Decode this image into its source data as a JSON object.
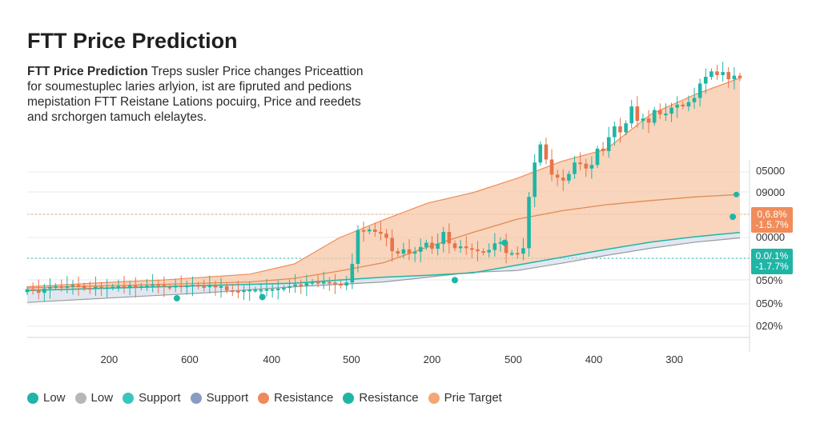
{
  "title": "FTT Price Prediction",
  "description": {
    "lead": "FTT Price Prediction",
    "lines": [
      " Treps susler Price changes Priceattion",
      "for soumestuplec laries arlyion, ist are fipruted and pedions",
      "mepistation FTT Reistane Lations pocuirg, Price and reedets",
      "and srchorgen tamuch elelaytes."
    ]
  },
  "chart_data": {
    "type": "line",
    "title": "FTT Price Prediction",
    "xlabel": "",
    "ylabel": "",
    "x_tick_labels": [
      "200",
      "600",
      "400",
      "500",
      "200",
      "500",
      "400",
      "300"
    ],
    "y_tick_labels": [
      "05000",
      "09000",
      "00000",
      "050%",
      "050%",
      "020%"
    ],
    "series": [
      {
        "name": "Price",
        "type": "candlestick",
        "values": [
          0.8,
          0.79,
          0.74,
          0.81,
          0.84,
          0.85,
          0.84,
          0.85,
          0.87,
          0.86,
          0.82,
          0.8,
          0.84,
          0.83,
          0.83,
          0.84,
          0.85,
          0.84,
          0.86,
          0.83,
          0.85,
          0.86,
          0.88,
          0.87,
          0.84,
          0.83,
          0.86,
          0.85,
          0.86,
          0.87,
          0.85,
          0.84,
          0.86,
          0.83,
          0.85,
          0.78,
          0.77,
          0.76,
          0.78,
          0.79,
          0.79,
          0.79,
          0.8,
          0.8,
          0.81,
          0.82,
          0.85,
          0.88,
          0.86,
          0.9,
          0.92,
          0.91,
          0.92,
          0.91,
          0.89,
          0.86,
          0.91,
          1.22,
          1.78,
          1.76,
          1.79,
          1.75,
          1.72,
          1.65,
          1.43,
          1.39,
          1.46,
          1.39,
          1.42,
          1.5,
          1.57,
          1.47,
          1.55,
          1.75,
          1.56,
          1.48,
          1.51,
          1.48,
          1.46,
          1.43,
          1.41,
          1.45,
          1.56,
          1.58,
          1.4,
          1.4,
          1.39,
          1.48,
          2.33,
          2.9,
          3.2,
          2.95,
          2.7,
          2.65,
          2.6,
          2.71,
          2.9,
          2.88,
          2.8,
          2.86,
          3.13,
          3.09,
          3.32,
          3.5,
          3.4,
          3.55,
          3.83,
          3.59,
          3.63,
          3.56,
          3.77,
          3.7,
          3.71,
          3.81,
          3.86,
          3.83,
          3.9,
          3.97,
          4.21,
          4.32,
          4.41,
          4.35,
          4.4,
          4.28,
          4.34,
          4.3
        ]
      },
      {
        "name": "Resistance",
        "values": [
          0.84,
          0.88,
          0.92,
          0.95,
          1.0,
          1.05,
          1.22,
          1.65,
          1.95,
          2.23,
          2.4,
          2.64,
          2.92,
          3.12,
          3.7,
          4.03,
          4.3
        ]
      },
      {
        "name": "Support",
        "values": [
          0.78,
          0.8,
          0.82,
          0.84,
          0.86,
          0.88,
          0.9,
          0.95,
          1.0,
          1.03,
          1.07,
          1.2,
          1.33,
          1.46,
          1.58,
          1.67,
          1.74
        ]
      },
      {
        "name": "Prie Target",
        "values": [
          0.82,
          0.84,
          0.86,
          0.88,
          0.9,
          0.92,
          0.98,
          1.1,
          1.24,
          1.5,
          1.74,
          1.96,
          2.1,
          2.2,
          2.27,
          2.33,
          2.37
        ]
      },
      {
        "name": "Low",
        "values": [
          0.58,
          0.62,
          0.66,
          0.7,
          0.74,
          0.79,
          0.84,
          0.88,
          0.92,
          1.0,
          1.08,
          1.11,
          1.23,
          1.36,
          1.48,
          1.58,
          1.65
        ]
      }
    ],
    "markers": [
      {
        "x": 0.21,
        "y": 0.65,
        "series": "Support"
      },
      {
        "x": 0.33,
        "y": 0.67,
        "series": "Support"
      },
      {
        "x": 0.6,
        "y": 0.95,
        "series": "Support"
      },
      {
        "x": 0.67,
        "y": 1.57,
        "series": "Support"
      },
      {
        "x": 0.99,
        "y": 2.0,
        "series": "Support"
      }
    ],
    "tags": [
      {
        "lines": [
          "0,6.8%",
          "-1.5.7%"
        ],
        "color": "#f08c5a",
        "text_color": "#ffffff"
      },
      {
        "lines": [
          "0.0/.1%",
          "-1.7.7%"
        ],
        "color": "#1fb5a5",
        "text_color": "#ffffff"
      }
    ],
    "ylim": [
      0,
      4.6
    ],
    "xlim": [
      0,
      1
    ],
    "grid": true,
    "legend": "bottom",
    "colors": {
      "up": "#1fb5a5",
      "down": "#e8734a",
      "resistance": "#e38a55",
      "support": "#1fb5a5",
      "target": "#f08c5a",
      "low": "#9a9a9a",
      "area_orange": "#f6c7a6",
      "area_blue": "#c9d4e6"
    }
  },
  "legend": [
    {
      "label": "Low",
      "color": "#1fb5a5"
    },
    {
      "label": "Low",
      "color": "#b7b7b7"
    },
    {
      "label": "Support",
      "color": "#39c6bd"
    },
    {
      "label": "Support",
      "color": "#8a9cc4"
    },
    {
      "label": "Resistance",
      "color": "#ef8a5a"
    },
    {
      "label": "Resistance",
      "color": "#1fb5a5"
    },
    {
      "label": "Prie Target",
      "color": "#f3a676"
    }
  ]
}
